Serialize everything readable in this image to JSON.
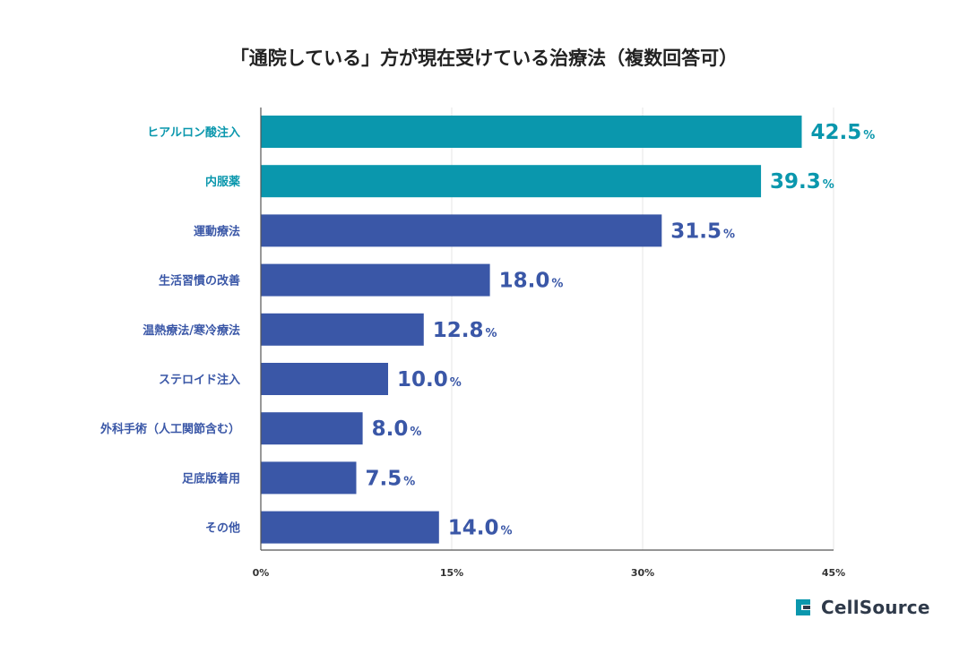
{
  "chart_data": {
    "type": "bar",
    "orientation": "horizontal",
    "title": "「通院している」方が現在受けている治療法（複数回答可）",
    "categories": [
      "ヒアルロン酸注入",
      "内服薬",
      "運動療法",
      "生活習慣の改善",
      "温熱療法/寒冷療法",
      "ステロイド注入",
      "外科手術（人工関節含む）",
      "足底版着用",
      "その他"
    ],
    "values": [
      42.5,
      39.3,
      31.5,
      18.0,
      12.8,
      10.0,
      8.0,
      7.5,
      14.0
    ],
    "value_labels": [
      "42.5",
      "39.3",
      "31.5",
      "18.0",
      "12.8",
      "10.0",
      "8.0",
      "7.5",
      "14.0"
    ],
    "value_unit": "%",
    "highlight_count": 2,
    "xlim": [
      0,
      45
    ],
    "xticks": [
      0,
      15,
      30,
      45
    ],
    "xtick_labels": [
      "0%",
      "15%",
      "30%",
      "45%"
    ],
    "xlabel": "",
    "ylabel": "",
    "grid": true,
    "colors": {
      "highlight": "#0a97ad",
      "default": "#3a57a7"
    }
  },
  "brand": {
    "name": "CellSource",
    "color": "#0a97ad"
  }
}
